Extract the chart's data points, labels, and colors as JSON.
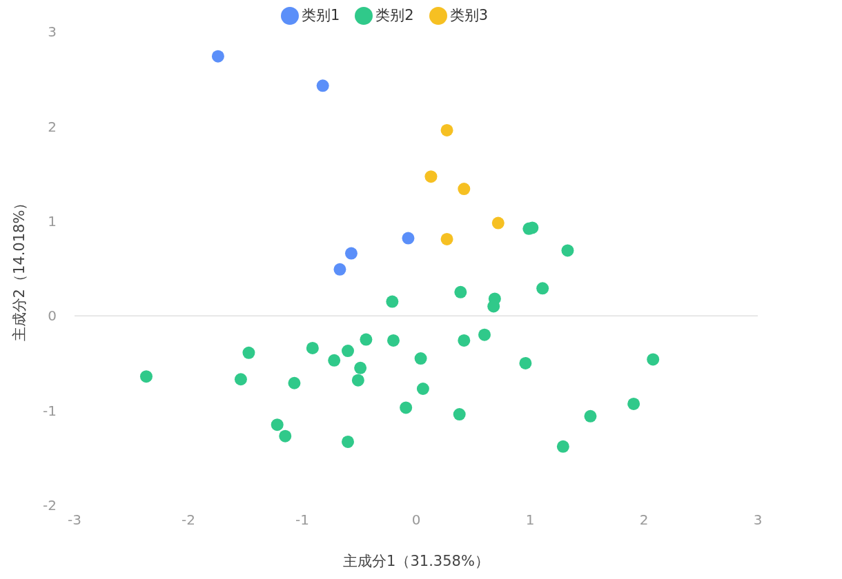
{
  "chart_data": {
    "type": "scatter",
    "xlabel": "主成分1（31.358%）",
    "ylabel": "主成分2（14.018%）",
    "xlim": [
      -3,
      3
    ],
    "xticks": [
      -3,
      -2,
      -1,
      0,
      1,
      2,
      3
    ],
    "ylim": [
      -2,
      3
    ],
    "yticks": [
      -2,
      -1,
      0,
      1,
      2,
      3
    ],
    "grid": false,
    "legend": "top",
    "marker": "circle",
    "ref_lines": [
      {
        "axis": "y",
        "value": 0,
        "color": "#e0e0e0"
      }
    ],
    "series": [
      {
        "name": "类别1",
        "color": "#5b8ff9",
        "x": [
          -1.74,
          -0.82,
          -0.07,
          -0.57,
          -0.67
        ],
        "values": [
          2.74,
          2.43,
          0.82,
          0.66,
          0.49
        ]
      },
      {
        "name": "类别2",
        "color": "#30c98a",
        "x": [
          -2.37,
          -1.47,
          -1.54,
          -0.91,
          -1.07,
          -1.22,
          -1.15,
          -0.72,
          -0.6,
          -0.44,
          -0.49,
          -0.51,
          -0.6,
          -0.21,
          -0.2,
          0.04,
          0.06,
          -0.09,
          0.38,
          0.39,
          0.42,
          0.6,
          0.69,
          0.68,
          0.96,
          0.99,
          1.02,
          1.11,
          1.33,
          1.53,
          1.29,
          1.91,
          2.08
        ],
        "values": [
          -0.64,
          -0.39,
          -0.67,
          -0.34,
          -0.71,
          -1.15,
          -1.27,
          -0.47,
          -0.37,
          -0.25,
          -0.55,
          -0.68,
          -1.33,
          0.15,
          -0.26,
          -0.45,
          -0.77,
          -0.97,
          -1.04,
          0.25,
          -0.26,
          -0.2,
          0.18,
          0.1,
          -0.5,
          0.92,
          0.93,
          0.29,
          0.69,
          -1.06,
          -1.38,
          -0.93,
          -0.46
        ]
      },
      {
        "name": "类别3",
        "color": "#f6c022",
        "x": [
          0.27,
          0.13,
          0.42,
          0.72,
          0.27
        ],
        "values": [
          1.96,
          1.47,
          1.34,
          0.98,
          0.81
        ]
      }
    ]
  }
}
